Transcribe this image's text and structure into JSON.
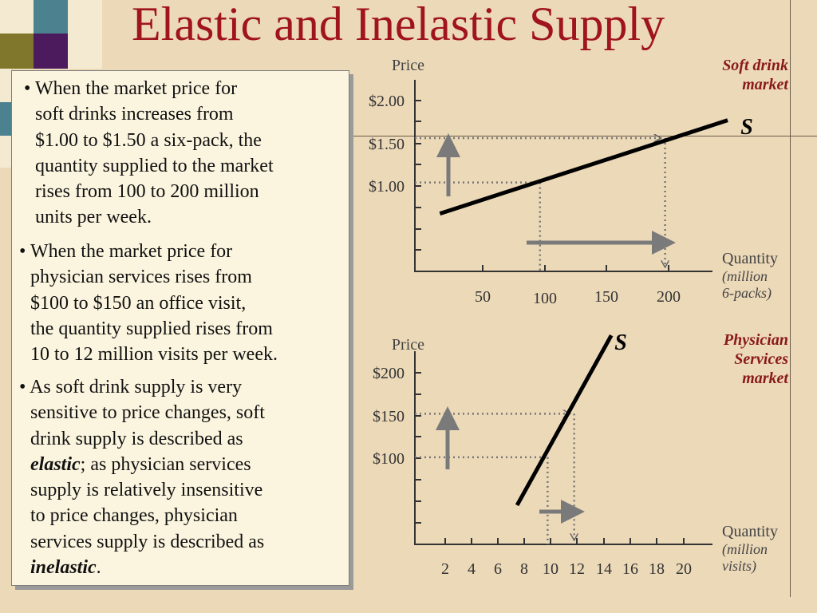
{
  "title": "Elastic and Inelastic Supply",
  "colors": {
    "background": "#ecd9b8",
    "title": "#a0141e",
    "textbox": "#fbf5df",
    "decor_squares": [
      "#f4ead2",
      "#4c8190",
      "#f4ead2",
      "#80772c",
      "#4c1b5e",
      "#f4ead2",
      "#f4ead2",
      "#4c8190",
      "#f4ead2"
    ]
  },
  "bullets": [
    {
      "lines": [
        "• When the market price for",
        "soft drinks increases from",
        "$1.00 to $1.50 a six-pack, the",
        "quantity supplied to the market",
        "rises from 100 to 200 million",
        "units per week."
      ]
    },
    {
      "lines": [
        "• When the market price for",
        "physician services rises from",
        "$100 to $150 an office visit,",
        "the quantity supplied rises from",
        "10 to 12 million visits per week."
      ]
    },
    {
      "lines": [
        "• As soft drink supply is very",
        "sensitive to price changes, soft",
        "drink supply is described as"
      ],
      "emph1": "elastic",
      "after_emph1": "; as physician services",
      "lines2": [
        "supply is relatively insensitive",
        "to price changes, physician",
        "services supply is described as"
      ],
      "emph2": "inelastic",
      "after_emph2": "."
    }
  ],
  "chart_data": [
    {
      "type": "line",
      "market_label": [
        "Soft drink",
        "market"
      ],
      "ylabel": "Price",
      "xlabel": "Quantity",
      "x_unit": [
        "(million",
        "6-packs)"
      ],
      "y_ticks": [
        "$2.00",
        "$1.50",
        "$1.00"
      ],
      "x_ticks": [
        "50",
        "100",
        "150",
        "200"
      ],
      "xlim": [
        0,
        250
      ],
      "ylim": [
        0,
        2.2
      ],
      "series": [
        {
          "name": "S",
          "x": [
            20,
            250
          ],
          "y": [
            0.65,
            1.7
          ]
        }
      ],
      "changes": {
        "price_from": 1.0,
        "price_to": 1.5,
        "qty_from": 100,
        "qty_to": 200
      }
    },
    {
      "type": "line",
      "market_label": [
        "Physician",
        "Services",
        "market"
      ],
      "ylabel": "Price",
      "xlabel": "Quantity",
      "x_unit": [
        "(million",
        "visits)"
      ],
      "y_ticks": [
        "$200",
        "$150",
        "$100"
      ],
      "x_ticks": [
        "2",
        "4",
        "6",
        "8",
        "10",
        "12",
        "14",
        "16",
        "18",
        "20"
      ],
      "xlim": [
        0,
        22
      ],
      "ylim": [
        0,
        220
      ],
      "series": [
        {
          "name": "S",
          "x": [
            7.7,
            14.8
          ],
          "y": [
            45,
            240
          ]
        }
      ],
      "changes": {
        "price_from": 100,
        "price_to": 150,
        "qty_from": 10,
        "qty_to": 12
      }
    }
  ]
}
